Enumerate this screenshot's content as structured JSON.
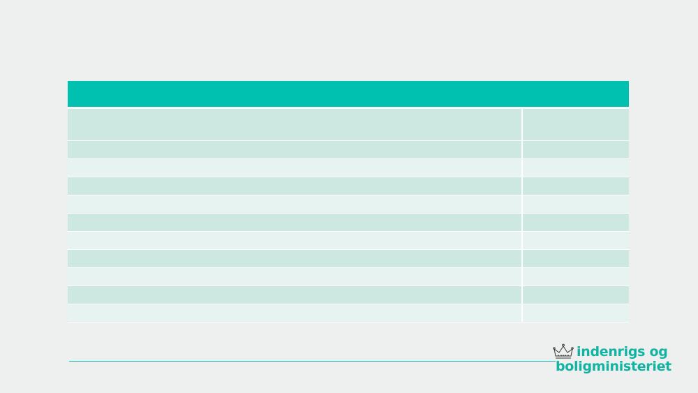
{
  "table": {
    "rows": [
      {
        "cells": [
          "",
          ""
        ],
        "tone": "dark",
        "tall": true
      },
      {
        "cells": [
          "",
          ""
        ],
        "tone": "dark",
        "tall": false
      },
      {
        "cells": [
          "",
          ""
        ],
        "tone": "light",
        "tall": false
      },
      {
        "cells": [
          "",
          ""
        ],
        "tone": "dark",
        "tall": false
      },
      {
        "cells": [
          "",
          ""
        ],
        "tone": "light",
        "tall": false
      },
      {
        "cells": [
          "",
          ""
        ],
        "tone": "dark",
        "tall": false
      },
      {
        "cells": [
          "",
          ""
        ],
        "tone": "light",
        "tall": false
      },
      {
        "cells": [
          "",
          ""
        ],
        "tone": "dark",
        "tall": false
      },
      {
        "cells": [
          "",
          ""
        ],
        "tone": "light",
        "tall": false
      },
      {
        "cells": [
          "",
          ""
        ],
        "tone": "dark",
        "tall": false
      },
      {
        "cells": [
          "",
          ""
        ],
        "tone": "light",
        "tall": false
      }
    ]
  },
  "logo": {
    "line1": "indenrigs og",
    "line2": "boligministeriet",
    "icon": "crown-icon",
    "color": "#11b3a3"
  },
  "colors": {
    "header": "#00c1b0",
    "row_dark": "#cde7e1",
    "row_light": "#e6f3f0",
    "background": "#eef0ef"
  }
}
